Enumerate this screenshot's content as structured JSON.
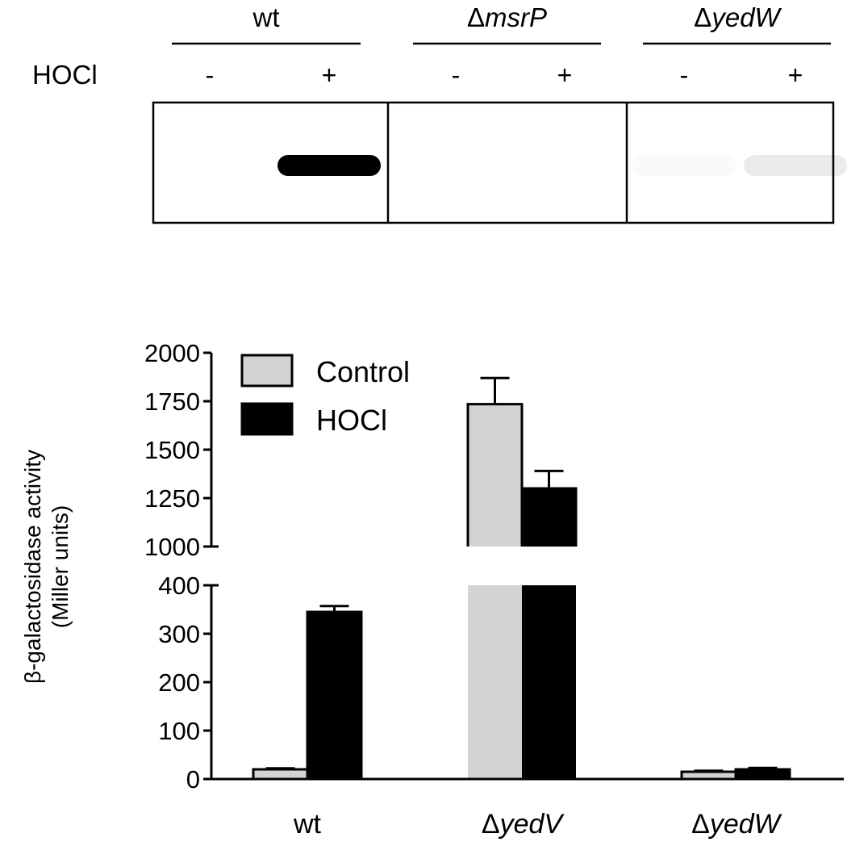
{
  "blot": {
    "treatment_label": "HOCl",
    "lanes": [
      {
        "prefix": "",
        "name": "wt",
        "italic": false,
        "signs": [
          "-",
          "+"
        ],
        "band_intensity": [
          0,
          1.0
        ]
      },
      {
        "prefix": "Δ",
        "name": "msrP",
        "italic": true,
        "signs": [
          "-",
          "+"
        ],
        "band_intensity": [
          0,
          0
        ]
      },
      {
        "prefix": "Δ",
        "name": "yedW",
        "italic": true,
        "signs": [
          "-",
          "+"
        ],
        "band_intensity": [
          0.02,
          0.08
        ]
      }
    ]
  },
  "chart_data": {
    "type": "bar",
    "categories": [
      {
        "prefix": "",
        "name": "wt",
        "italic": false
      },
      {
        "prefix": "Δ",
        "name": "yedV",
        "italic": true
      },
      {
        "prefix": "Δ",
        "name": "yedW",
        "italic": true
      }
    ],
    "series": [
      {
        "name": "Control",
        "color": "#d3d3d3",
        "values": [
          20,
          1735,
          15
        ],
        "errors": [
          2,
          135,
          2
        ]
      },
      {
        "name": "HOCl",
        "color": "#000000",
        "values": [
          345,
          1300,
          20
        ],
        "errors": [
          12,
          90,
          3
        ]
      }
    ],
    "ylabel_line1": "β-galactosidase activity",
    "ylabel_line2": "(Miller units)",
    "y_axis_break": {
      "lower_range": [
        0,
        400
      ],
      "lower_ticks": [
        "0",
        "100",
        "200",
        "300",
        "400"
      ],
      "upper_range": [
        1000,
        2000
      ],
      "upper_ticks": [
        "1000",
        "1250",
        "1500",
        "1750",
        "2000"
      ]
    },
    "legend_position": "top-left"
  }
}
